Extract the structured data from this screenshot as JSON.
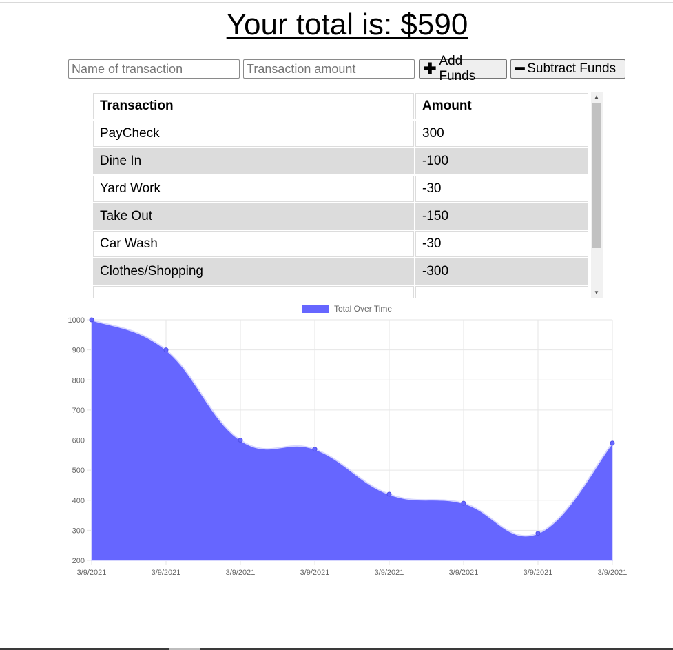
{
  "total": {
    "text": "Your total is: $590"
  },
  "form": {
    "name_placeholder": "Name of transaction",
    "amount_placeholder": "Transaction amount",
    "add_label": "Add Funds",
    "subtract_label": "Subtract Funds",
    "add_icon": "plus-icon",
    "subtract_icon": "minus-icon"
  },
  "table": {
    "headers": [
      "Transaction",
      "Amount"
    ],
    "rows": [
      {
        "name": "PayCheck",
        "amount": "300"
      },
      {
        "name": "Dine In",
        "amount": "-100"
      },
      {
        "name": "Yard Work",
        "amount": "-30"
      },
      {
        "name": "Take Out",
        "amount": "-150"
      },
      {
        "name": "Car Wash",
        "amount": "-30"
      },
      {
        "name": "Clothes/Shopping",
        "amount": "-300"
      }
    ]
  },
  "chart_data": {
    "type": "area",
    "legend": "Total Over Time",
    "legend_placement": "top",
    "x": [
      "3/9/2021",
      "3/9/2021",
      "3/9/2021",
      "3/9/2021",
      "3/9/2021",
      "3/9/2021",
      "3/9/2021",
      "3/9/2021"
    ],
    "values": [
      1000,
      900,
      600,
      570,
      420,
      390,
      290,
      590
    ],
    "ylim": [
      200,
      1000
    ],
    "yticks": [
      200,
      300,
      400,
      500,
      600,
      700,
      800,
      900,
      1000
    ],
    "grid": true,
    "fill_color": "#6666ff",
    "line_color": "#d6d6ff"
  }
}
